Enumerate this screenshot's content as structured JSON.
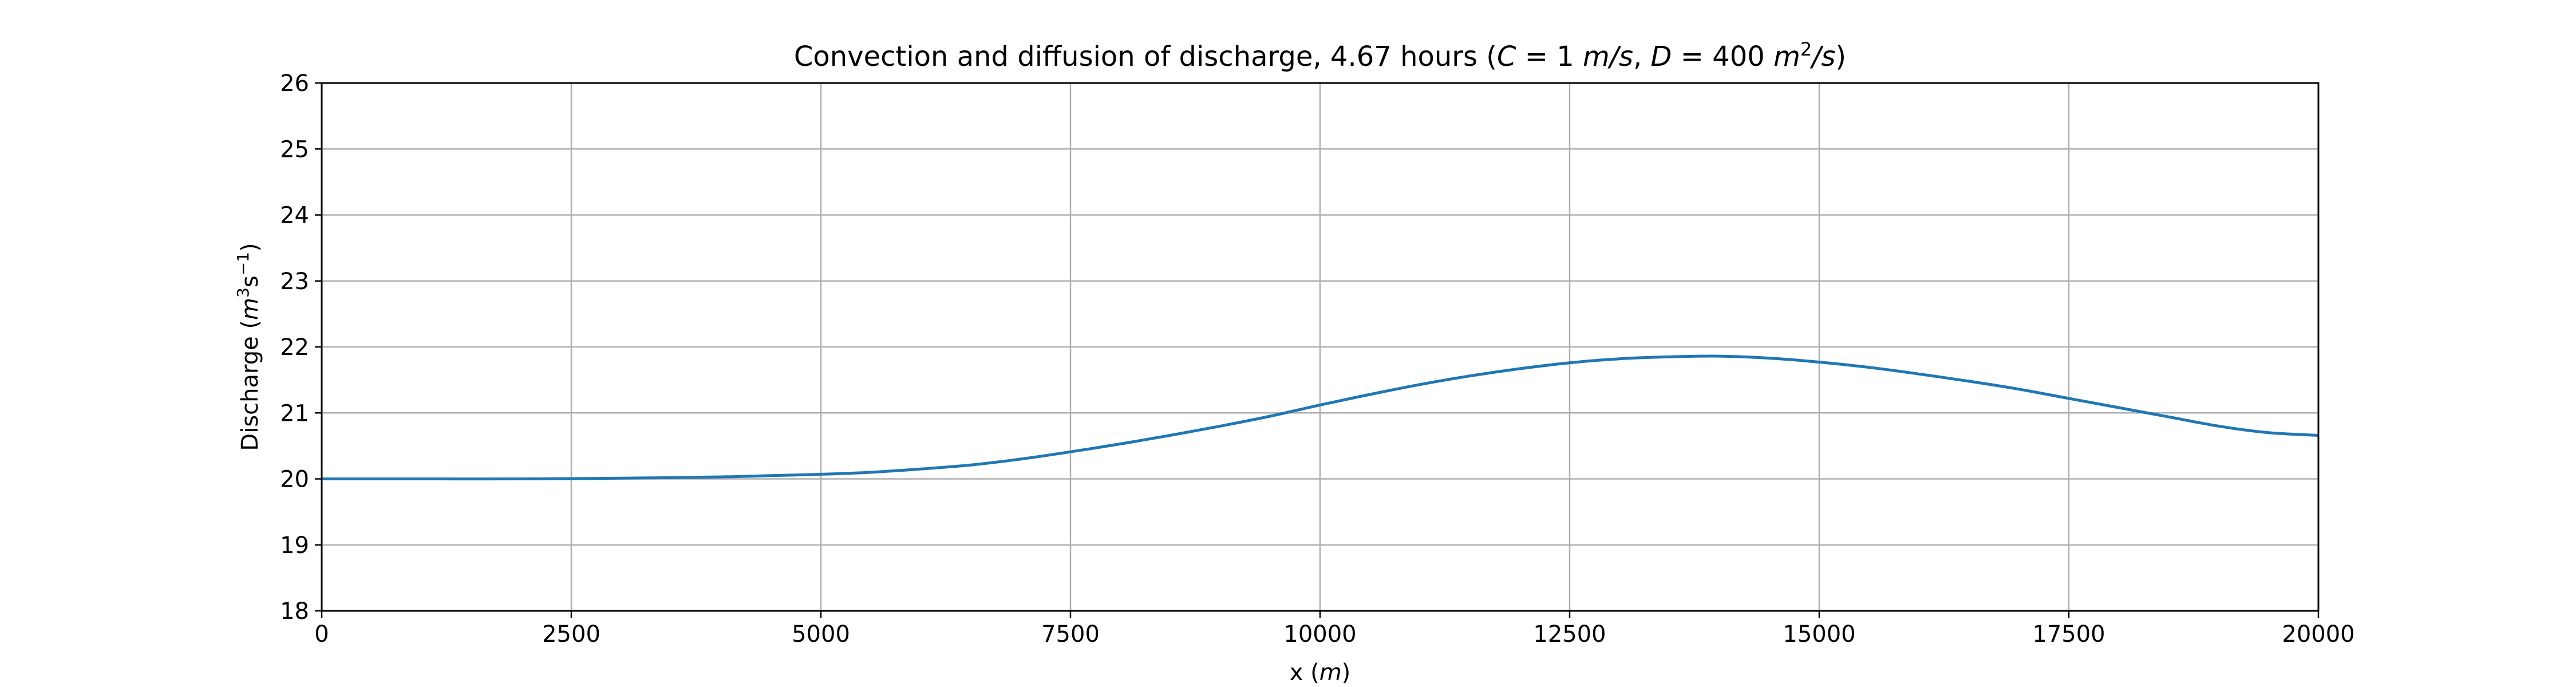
{
  "chart_data": {
    "type": "line",
    "title": {
      "prefix": "Convection and diffusion of discharge, 4.67 hours (",
      "c_sym": "C",
      "c_val": " = 1 ",
      "c_unit": "m/s",
      "sep": ", ",
      "d_sym": "D",
      "d_val": " = 400 ",
      "d_unit1": "m",
      "d_exp": "2",
      "d_unit2": "/s",
      "suffix": ")"
    },
    "xlabel": {
      "text": "x (",
      "unit": "m",
      "close": ")"
    },
    "ylabel": {
      "text": "Discharge (",
      "unit": "m",
      "exp1": "3",
      "mid": "s",
      "exp2": "−1",
      "close": ")"
    },
    "xlim": [
      0,
      20000
    ],
    "ylim": [
      18,
      26
    ],
    "xticks": [
      0,
      2500,
      5000,
      7500,
      10000,
      12500,
      15000,
      17500,
      20000
    ],
    "xtick_labels": [
      "0",
      "2500",
      "5000",
      "7500",
      "10000",
      "12500",
      "15000",
      "17500",
      "20000"
    ],
    "yticks": [
      18,
      19,
      20,
      21,
      22,
      23,
      24,
      25,
      26
    ],
    "ytick_labels": [
      "18",
      "19",
      "20",
      "21",
      "22",
      "23",
      "24",
      "25",
      "26"
    ],
    "grid": true,
    "series": [
      {
        "color": "#1f77b4",
        "x": [
          0,
          1000,
          2000,
          3000,
          4000,
          4500,
          5000,
          5500,
          6000,
          6500,
          7000,
          7500,
          8000,
          8500,
          9000,
          9500,
          10000,
          10500,
          11000,
          11500,
          12000,
          12500,
          13000,
          13500,
          14000,
          14500,
          15000,
          15500,
          16000,
          16500,
          17000,
          17500,
          18000,
          18500,
          19000,
          19500,
          20000
        ],
        "y": [
          20.0,
          20.0,
          20.0,
          20.01,
          20.03,
          20.05,
          20.07,
          20.1,
          20.15,
          20.21,
          20.3,
          20.41,
          20.53,
          20.66,
          20.8,
          20.95,
          21.12,
          21.28,
          21.43,
          21.56,
          21.67,
          21.76,
          21.82,
          21.85,
          21.86,
          21.83,
          21.77,
          21.69,
          21.59,
          21.48,
          21.36,
          21.22,
          21.08,
          20.94,
          20.8,
          20.7,
          20.66
        ]
      }
    ]
  }
}
